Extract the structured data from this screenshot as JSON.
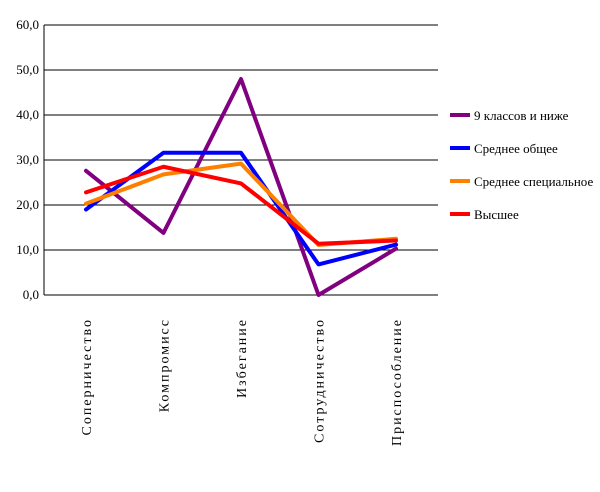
{
  "chart_data": {
    "type": "line",
    "title": "",
    "xlabel": "",
    "ylabel": "",
    "ylim": [
      0,
      60
    ],
    "yticks": [
      "0,0",
      "10,0",
      "20,0",
      "30,0",
      "40,0",
      "50,0",
      "60,0"
    ],
    "grid": true,
    "legend_position": "right",
    "categories": [
      "Соперничество",
      "Компромисс",
      "Избегание",
      "Сотрудничество",
      "Приспособление"
    ],
    "series": [
      {
        "name": "9 классов и ниже",
        "color": "#800080",
        "values": [
          27.6,
          13.8,
          48.0,
          0.0,
          10.3
        ]
      },
      {
        "name": "Среднее общее",
        "color": "#0000ff",
        "values": [
          19.0,
          31.6,
          31.6,
          6.8,
          11.2
        ]
      },
      {
        "name": "Среднее специальное",
        "color": "#ff8000",
        "values": [
          20.3,
          26.8,
          29.2,
          11.1,
          12.5
        ]
      },
      {
        "name": "Высшее",
        "color": "#ff0000",
        "values": [
          22.8,
          28.5,
          24.8,
          11.4,
          12.1
        ]
      }
    ]
  }
}
